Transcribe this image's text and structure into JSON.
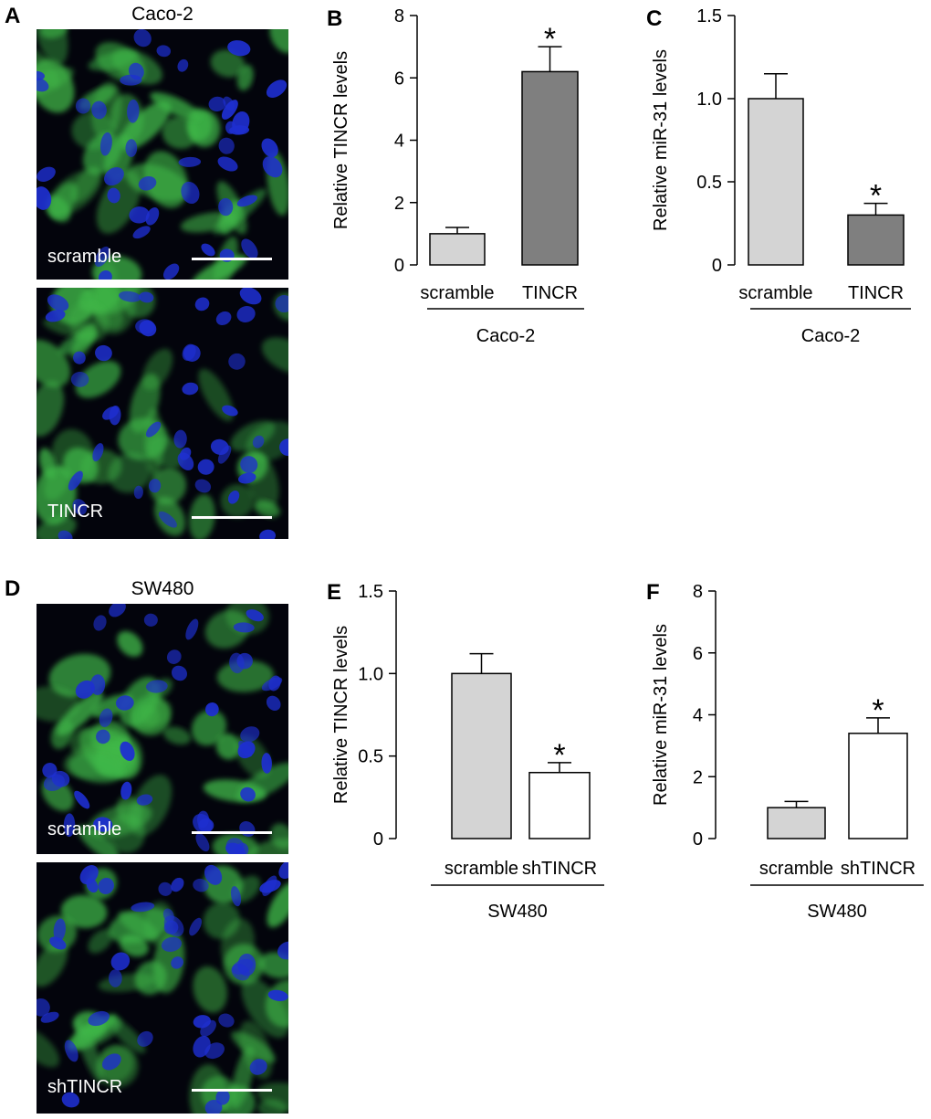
{
  "panels": {
    "A": {
      "letter": "A",
      "title": "Caco-2",
      "images": [
        {
          "label": "scramble"
        },
        {
          "label": "TINCR"
        }
      ]
    },
    "D": {
      "letter": "D",
      "title": "SW480",
      "images": [
        {
          "label": "scramble"
        },
        {
          "label": "shTINCR"
        }
      ]
    }
  },
  "colors": {
    "bar_light": "#d4d4d4",
    "bar_dark": "#7f7f7f",
    "bar_white": "#ffffff",
    "nuclei": "#1e2fd0",
    "cytoplasm": "#3fb848"
  },
  "chart_data": [
    {
      "panel": "B",
      "type": "bar",
      "ylabel": "Relative TINCR levels",
      "group_label": "Caco-2",
      "categories": [
        "scramble",
        "TINCR"
      ],
      "values": [
        1.0,
        6.2
      ],
      "errors": [
        0.2,
        0.8
      ],
      "significance": [
        "",
        "*"
      ],
      "bar_colors": [
        "#d4d4d4",
        "#7f7f7f"
      ],
      "yticks": [
        "0",
        "2",
        "4",
        "6",
        "8"
      ],
      "ylim": [
        0,
        8
      ]
    },
    {
      "panel": "C",
      "type": "bar",
      "ylabel": "Relative miR-31 levels",
      "group_label": "Caco-2",
      "categories": [
        "scramble",
        "TINCR"
      ],
      "values": [
        1.0,
        0.3
      ],
      "errors": [
        0.15,
        0.07
      ],
      "significance": [
        "",
        "*"
      ],
      "bar_colors": [
        "#d4d4d4",
        "#7f7f7f"
      ],
      "yticks": [
        "0",
        "0.5",
        "1.0",
        "1.5"
      ],
      "ylim": [
        0,
        1.5
      ]
    },
    {
      "panel": "E",
      "type": "bar",
      "ylabel": "Relative TINCR levels",
      "group_label": "SW480",
      "categories": [
        "scramble",
        "shTINCR"
      ],
      "values": [
        1.0,
        0.4
      ],
      "errors": [
        0.12,
        0.06
      ],
      "significance": [
        "",
        "*"
      ],
      "bar_colors": [
        "#d4d4d4",
        "#ffffff"
      ],
      "yticks": [
        "0",
        "0.5",
        "1.0",
        "1.5"
      ],
      "ylim": [
        0,
        1.5
      ]
    },
    {
      "panel": "F",
      "type": "bar",
      "ylabel": "Relative miR-31 levels",
      "group_label": "SW480",
      "categories": [
        "scramble",
        "shTINCR"
      ],
      "values": [
        1.0,
        3.4
      ],
      "errors": [
        0.2,
        0.5
      ],
      "significance": [
        "",
        "*"
      ],
      "bar_colors": [
        "#d4d4d4",
        "#ffffff"
      ],
      "yticks": [
        "0",
        "2",
        "4",
        "6",
        "8"
      ],
      "ylim": [
        0,
        8
      ]
    }
  ]
}
